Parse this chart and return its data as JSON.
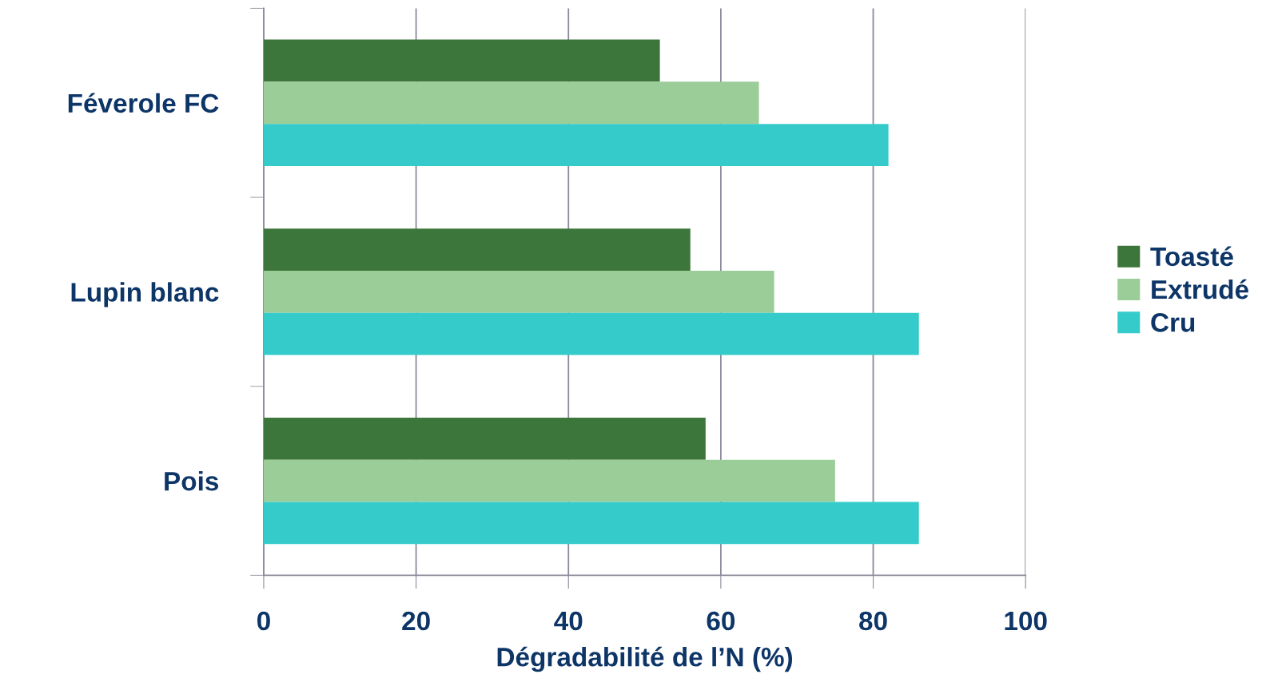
{
  "chart_data": {
    "type": "bar",
    "orientation": "horizontal",
    "xlabel": "Dégradabilité de l’N (%)",
    "categories": [
      "Féverole FC",
      "Lupin blanc",
      "Pois"
    ],
    "series": [
      {
        "name": "Toasté",
        "color": "#3d763a",
        "values": [
          52,
          56,
          58
        ]
      },
      {
        "name": "Extrudé",
        "color": "#9bcd99",
        "values": [
          65,
          67,
          75
        ]
      },
      {
        "name": "Cru",
        "color": "#35cbcb",
        "values": [
          82,
          86,
          86
        ]
      }
    ],
    "xlim": [
      0,
      100
    ],
    "xticks": [
      0,
      20,
      40,
      60,
      80,
      100
    ],
    "grid": "x",
    "legend": "right"
  }
}
